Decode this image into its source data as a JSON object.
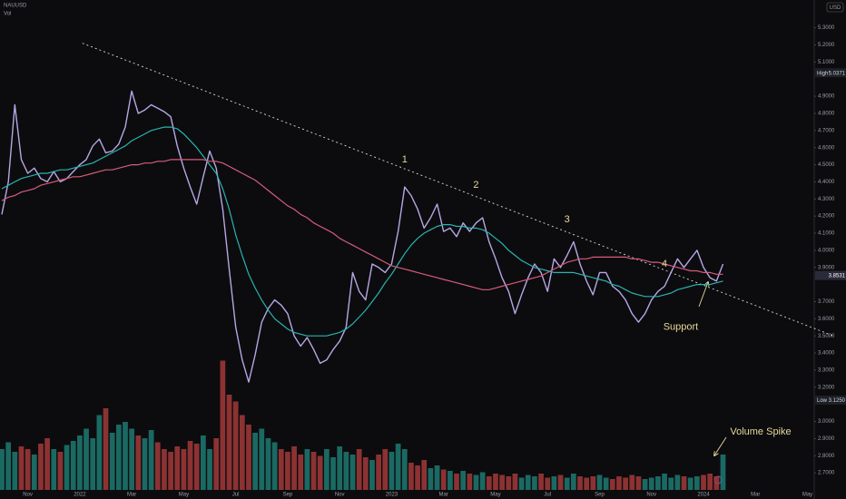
{
  "chart_data": {
    "type": "line",
    "symbol": "NAUUSD",
    "volume_title": "Vol",
    "currency": "USD",
    "categories": [
      null,
      null,
      null,
      null,
      "Nov",
      null,
      null,
      null,
      null,
      null,
      null,
      null,
      "2022",
      null,
      null,
      null,
      null,
      null,
      null,
      null,
      "Mar",
      null,
      null,
      null,
      null,
      null,
      null,
      null,
      "May",
      null,
      null,
      null,
      null,
      null,
      null,
      null,
      "Jul",
      null,
      null,
      null,
      null,
      null,
      null,
      null,
      "Sep",
      null,
      null,
      null,
      null,
      null,
      null,
      null,
      "Nov",
      null,
      null,
      null,
      null,
      null,
      null,
      null,
      "2023",
      null,
      null,
      null,
      null,
      null,
      null,
      null,
      "Mar",
      null,
      null,
      null,
      null,
      null,
      null,
      null,
      "May",
      null,
      null,
      null,
      null,
      null,
      null,
      null,
      "Jul",
      null,
      null,
      null,
      null,
      null,
      null,
      null,
      "Sep",
      null,
      null,
      null,
      null,
      null,
      null,
      null,
      "Nov",
      null,
      null,
      null,
      null,
      null,
      null,
      null,
      "2024",
      null,
      null,
      null,
      null,
      null,
      null,
      null,
      "Mar",
      null,
      null,
      null,
      null,
      null,
      null,
      null,
      "May",
      null,
      null,
      null
    ],
    "series": [
      {
        "color": "#b8a6e6",
        "width": 1.4,
        "values": [
          4.21,
          4.4,
          4.85,
          4.53,
          4.45,
          4.48,
          4.42,
          4.4,
          4.46,
          4.4,
          4.42,
          4.46,
          4.5,
          4.53,
          4.61,
          4.65,
          4.57,
          4.58,
          4.62,
          4.72,
          4.93,
          4.8,
          4.82,
          4.85,
          4.83,
          4.81,
          4.78,
          4.61,
          4.48,
          4.37,
          4.27,
          4.43,
          4.58,
          4.48,
          4.24,
          3.89,
          3.55,
          3.36,
          3.23,
          3.39,
          3.58,
          3.66,
          3.71,
          3.68,
          3.63,
          3.5,
          3.44,
          3.49,
          3.42,
          3.34,
          3.36,
          3.42,
          3.47,
          3.55,
          3.87,
          3.76,
          3.71,
          3.92,
          3.9,
          3.87,
          3.92,
          4.11,
          4.37,
          4.32,
          4.24,
          4.13,
          4.19,
          4.27,
          4.11,
          4.13,
          4.08,
          4.16,
          4.11,
          4.16,
          4.19,
          4.05,
          3.95,
          3.84,
          3.76,
          3.63,
          3.74,
          3.84,
          3.92,
          3.87,
          3.76,
          3.95,
          3.9,
          3.97,
          4.05,
          3.92,
          3.82,
          3.74,
          3.87,
          3.87,
          3.79,
          3.76,
          3.71,
          3.63,
          3.58,
          3.63,
          3.71,
          3.76,
          3.79,
          3.87,
          3.95,
          3.9,
          3.95,
          4.0,
          3.9,
          3.84,
          3.82,
          3.92,
          null,
          null,
          null,
          null,
          null,
          null,
          null,
          null,
          null,
          null,
          null,
          null,
          null,
          null,
          null,
          null
        ]
      },
      {
        "color": "#2bb3b0",
        "width": 1.2,
        "values": [
          4.36,
          4.38,
          4.4,
          4.42,
          4.43,
          4.44,
          4.45,
          4.45,
          4.46,
          4.47,
          4.47,
          4.48,
          4.49,
          4.5,
          4.51,
          4.53,
          4.55,
          4.57,
          4.59,
          4.61,
          4.64,
          4.66,
          4.68,
          4.7,
          4.71,
          4.72,
          4.72,
          4.71,
          4.68,
          4.64,
          4.6,
          4.55,
          4.5,
          4.45,
          4.36,
          4.24,
          4.09,
          3.97,
          3.86,
          3.78,
          3.71,
          3.65,
          3.6,
          3.57,
          3.54,
          3.52,
          3.51,
          3.5,
          3.5,
          3.5,
          3.5,
          3.51,
          3.52,
          3.54,
          3.57,
          3.61,
          3.65,
          3.7,
          3.75,
          3.81,
          3.86,
          3.92,
          3.98,
          4.03,
          4.07,
          4.1,
          4.12,
          4.14,
          4.15,
          4.15,
          4.14,
          4.14,
          4.13,
          4.13,
          4.12,
          4.1,
          4.07,
          4.04,
          4.0,
          3.97,
          3.94,
          3.92,
          3.9,
          3.89,
          3.88,
          3.87,
          3.87,
          3.87,
          3.87,
          3.86,
          3.85,
          3.84,
          3.83,
          3.82,
          3.8,
          3.79,
          3.77,
          3.75,
          3.74,
          3.73,
          3.73,
          3.73,
          3.74,
          3.75,
          3.77,
          3.78,
          3.79,
          3.8,
          3.8,
          3.8,
          3.81,
          3.82,
          null,
          null,
          null,
          null,
          null,
          null,
          null,
          null,
          null,
          null,
          null,
          null,
          null,
          null,
          null,
          null
        ]
      },
      {
        "color": "#d65c7a",
        "width": 1.2,
        "values": [
          4.29,
          4.31,
          4.32,
          4.34,
          4.35,
          4.36,
          4.38,
          4.39,
          4.4,
          4.41,
          4.42,
          4.43,
          4.43,
          4.44,
          4.45,
          4.46,
          4.47,
          4.47,
          4.48,
          4.49,
          4.5,
          4.5,
          4.51,
          4.51,
          4.52,
          4.52,
          4.53,
          4.53,
          4.53,
          4.53,
          4.53,
          4.53,
          4.52,
          4.52,
          4.51,
          4.49,
          4.47,
          4.45,
          4.43,
          4.41,
          4.38,
          4.35,
          4.32,
          4.29,
          4.26,
          4.24,
          4.21,
          4.19,
          4.16,
          4.14,
          4.12,
          4.1,
          4.07,
          4.05,
          4.03,
          4.01,
          3.99,
          3.97,
          3.95,
          3.93,
          3.91,
          3.9,
          3.89,
          3.88,
          3.87,
          3.86,
          3.85,
          3.84,
          3.83,
          3.82,
          3.81,
          3.8,
          3.79,
          3.78,
          3.77,
          3.77,
          3.78,
          3.79,
          3.8,
          3.81,
          3.82,
          3.83,
          3.84,
          3.85,
          3.87,
          3.89,
          3.91,
          3.93,
          3.94,
          3.95,
          3.95,
          3.96,
          3.96,
          3.96,
          3.96,
          3.96,
          3.96,
          3.95,
          3.95,
          3.94,
          3.93,
          3.93,
          3.92,
          3.91,
          3.9,
          3.89,
          3.88,
          3.88,
          3.87,
          3.87,
          3.86,
          3.86,
          null,
          null,
          null,
          null,
          null,
          null,
          null,
          null,
          null,
          null,
          null,
          null,
          null,
          null,
          null,
          null
        ]
      }
    ],
    "volume": {
      "up_color": "#1f7a72",
      "down_color": "#a33a3a",
      "ylim": [
        0,
        100
      ],
      "values": [
        30,
        35,
        28,
        32,
        30,
        26,
        34,
        38,
        30,
        28,
        33,
        36,
        40,
        45,
        38,
        55,
        60,
        42,
        48,
        50,
        45,
        40,
        38,
        44,
        35,
        30,
        28,
        32,
        30,
        36,
        34,
        40,
        30,
        38,
        95,
        70,
        65,
        55,
        48,
        42,
        45,
        38,
        35,
        30,
        28,
        32,
        26,
        30,
        28,
        25,
        30,
        24,
        32,
        28,
        26,
        30,
        24,
        22,
        26,
        30,
        28,
        34,
        30,
        20,
        18,
        22,
        16,
        18,
        15,
        14,
        12,
        14,
        12,
        11,
        13,
        10,
        12,
        11,
        10,
        12,
        9,
        11,
        10,
        12,
        9,
        10,
        11,
        9,
        12,
        10,
        9,
        10,
        11,
        9,
        8,
        10,
        9,
        11,
        10,
        8,
        9,
        10,
        12,
        9,
        11,
        10,
        9,
        10,
        11,
        12,
        10,
        26,
        null,
        null,
        null,
        null,
        null,
        null,
        null,
        null,
        null,
        null,
        null,
        null,
        null,
        null,
        null,
        null
      ]
    },
    "ylim": [
      2.6,
      5.42
    ],
    "yticks": [
      {
        "value": 5.3,
        "label": "5.3000"
      },
      {
        "value": 5.2,
        "label": "5.2000"
      },
      {
        "value": 5.1,
        "label": "5.1000"
      },
      {
        "value": 4.9,
        "label": "4.9000"
      },
      {
        "value": 4.8,
        "label": "4.8000"
      },
      {
        "value": 4.7,
        "label": "4.7000"
      },
      {
        "value": 4.6,
        "label": "4.6000"
      },
      {
        "value": 4.5,
        "label": "4.5000"
      },
      {
        "value": 4.4,
        "label": "4.4000"
      },
      {
        "value": 4.3,
        "label": "4.3000"
      },
      {
        "value": 4.2,
        "label": "4.2000"
      },
      {
        "value": 4.1,
        "label": "4.1000"
      },
      {
        "value": 4.0,
        "label": "4.0000"
      },
      {
        "value": 3.9,
        "label": "3.9000"
      },
      {
        "value": 3.7,
        "label": "3.7000"
      },
      {
        "value": 3.6,
        "label": "3.6000"
      },
      {
        "value": 3.5,
        "label": "3.5000"
      },
      {
        "value": 3.4,
        "label": "3.4000"
      },
      {
        "value": 3.3,
        "label": "3.3000"
      },
      {
        "value": 3.2,
        "label": "3.2000"
      },
      {
        "value": 3.0,
        "label": "3.0000"
      },
      {
        "value": 2.9,
        "label": "2.9000"
      },
      {
        "value": 2.8,
        "label": "2.8000"
      },
      {
        "value": 2.7,
        "label": "2.7000"
      }
    ],
    "grid": false,
    "high": {
      "label": "High",
      "value": 5.0371
    },
    "low": {
      "label": "Low",
      "value": 3.125,
      "value_label": "3.1250"
    },
    "last": 3.8531,
    "trendline": {
      "x": [
        12.4,
        128
      ],
      "y": [
        5.21,
        3.5
      ]
    },
    "annotations": [
      {
        "text": "1",
        "x": 62,
        "y": 4.53
      },
      {
        "text": "2",
        "x": 73,
        "y": 4.38
      },
      {
        "text": "3",
        "x": 87,
        "y": 4.18
      },
      {
        "text": "4",
        "x": 102,
        "y": 3.92
      },
      {
        "text": "Support",
        "x": 104.5,
        "y": 3.55
      },
      {
        "text": "Volume Spike",
        "x": 116.8,
        "y": 2.94
      }
    ]
  }
}
